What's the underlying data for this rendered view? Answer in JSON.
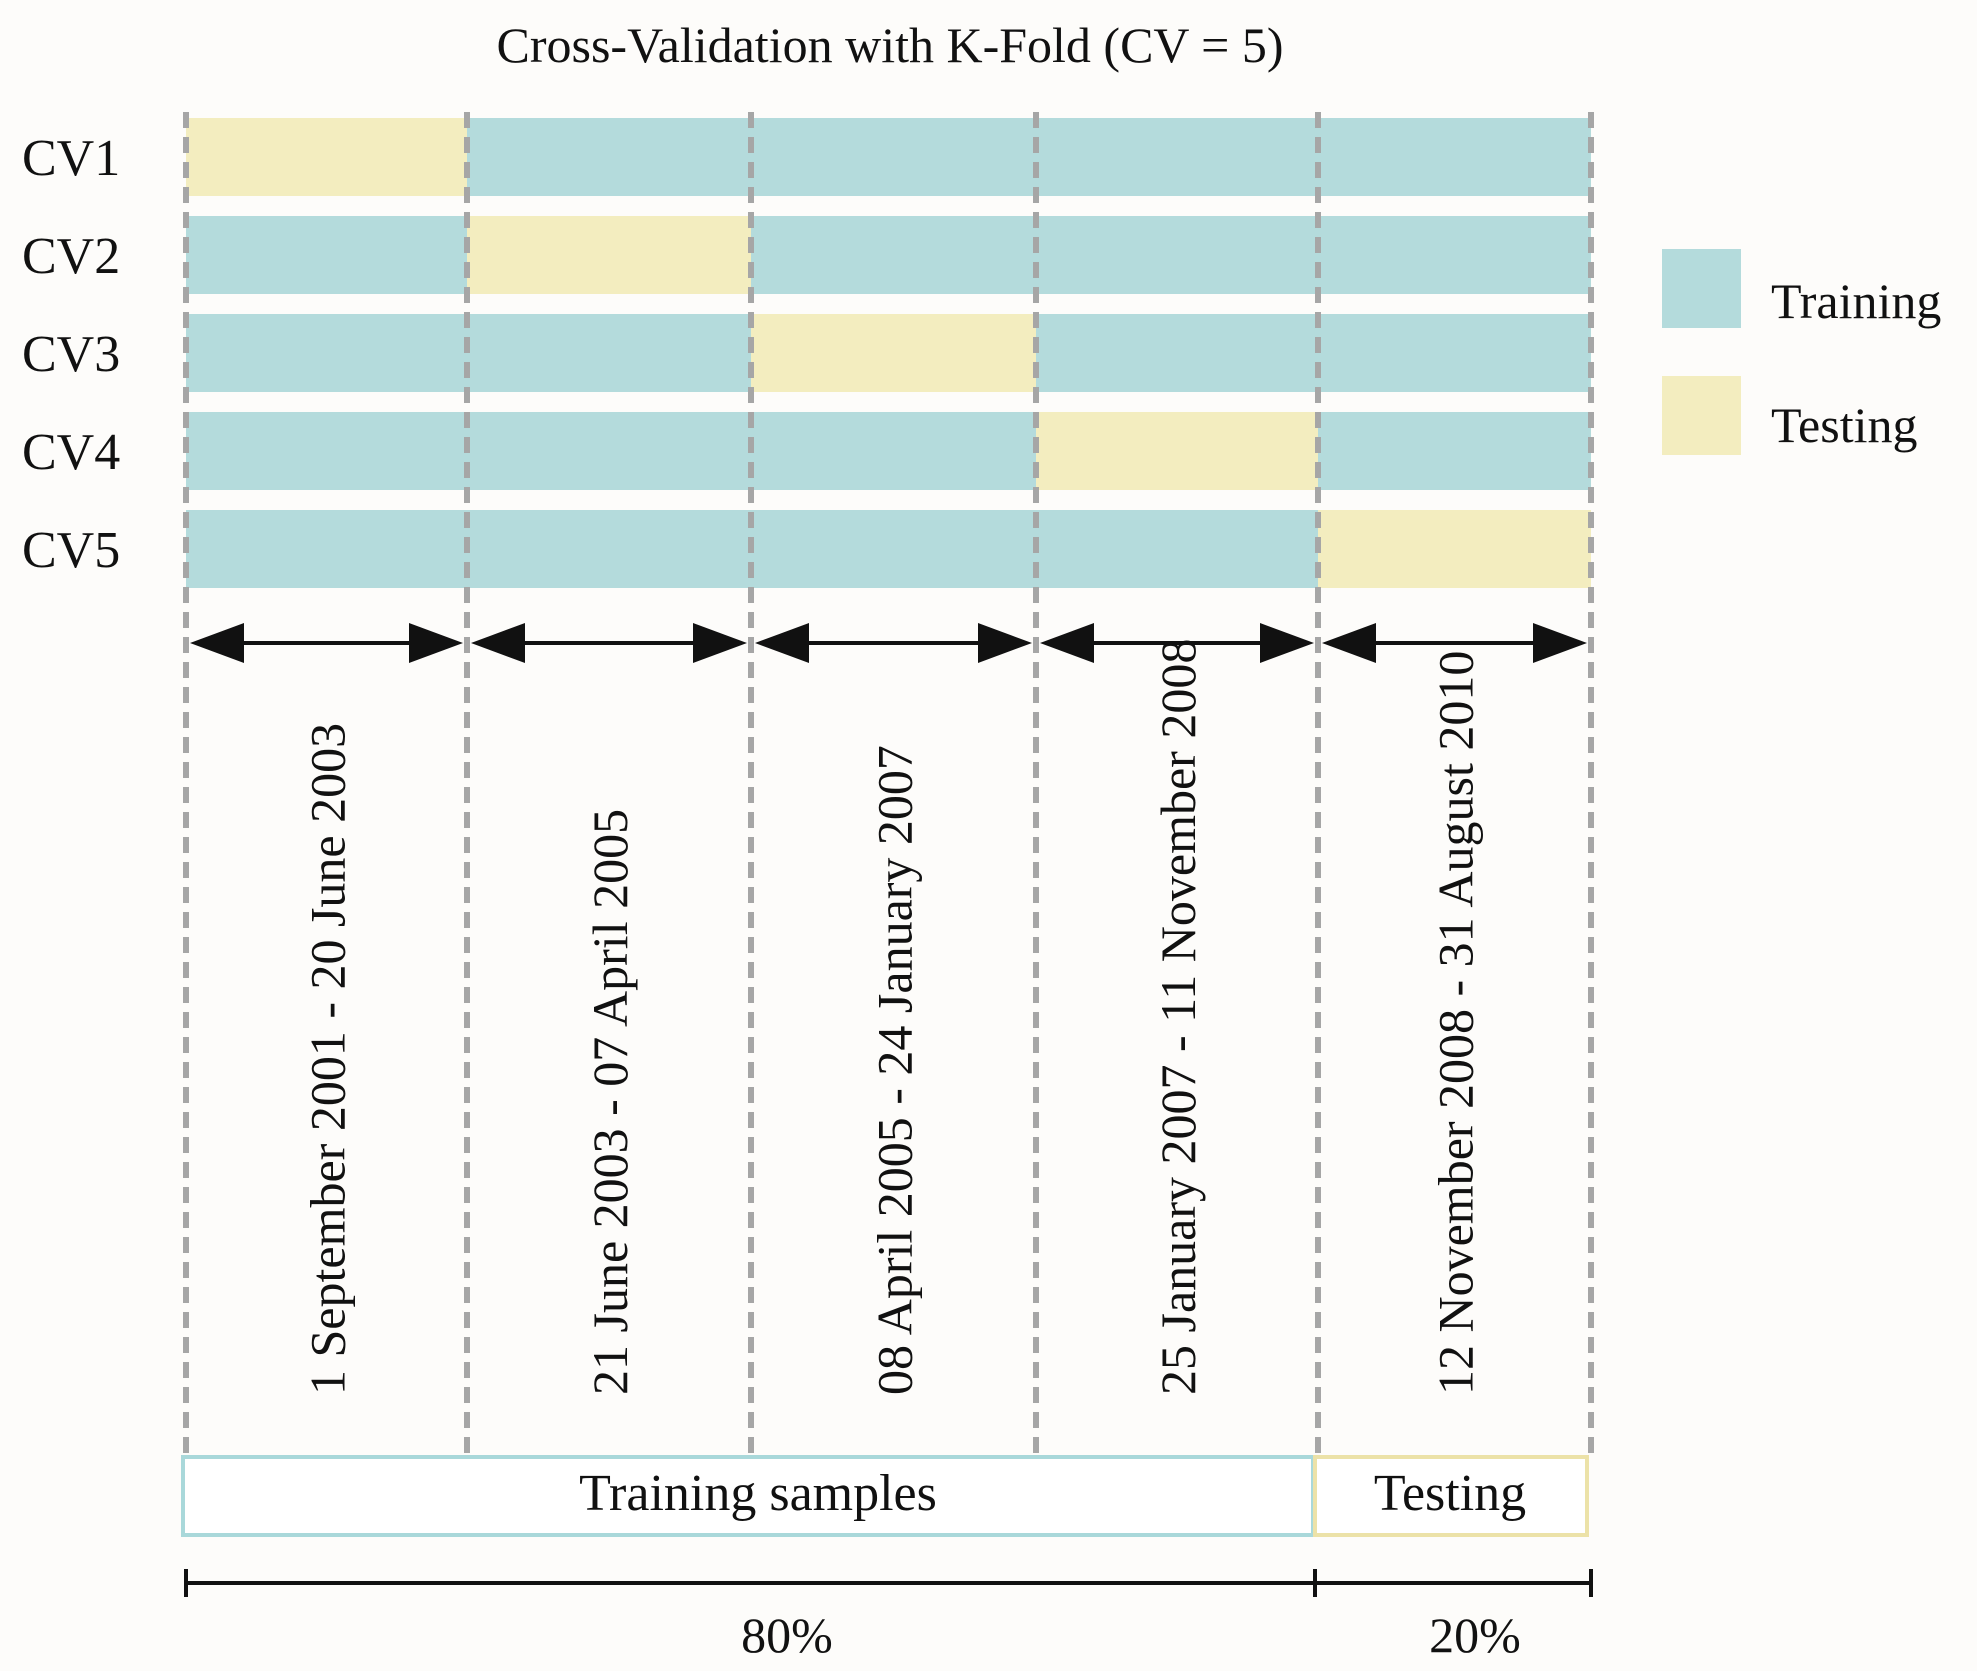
{
  "title": "Cross-Validation with K-Fold (CV = 5)",
  "colors": {
    "training": "#b4dbdc",
    "testing": "#f3edbf",
    "divider": "#a6a6a6",
    "training_border": "#a9d8da",
    "testing_border": "#ece2a8",
    "text": "#111111"
  },
  "folds": [
    {
      "label": "CV1",
      "test_segment": 0
    },
    {
      "label": "CV2",
      "test_segment": 1
    },
    {
      "label": "CV3",
      "test_segment": 2
    },
    {
      "label": "CV4",
      "test_segment": 3
    },
    {
      "label": "CV5",
      "test_segment": 4
    }
  ],
  "segments": [
    {
      "period": "1 September 2001 - 20 June 2003"
    },
    {
      "period": "21 June 2003 - 07 April 2005"
    },
    {
      "period": "08 April 2005 - 24 January 2007"
    },
    {
      "period": "25 January 2007 - 11 November 2008"
    },
    {
      "period": "12 November 2008 - 31 August 2010"
    }
  ],
  "legend": [
    {
      "label": "Training",
      "kind": "training"
    },
    {
      "label": "Testing",
      "kind": "testing"
    }
  ],
  "split": {
    "training_label": "Training samples",
    "testing_label": "Testing",
    "training_percent": "80%",
    "testing_percent": "20%"
  }
}
